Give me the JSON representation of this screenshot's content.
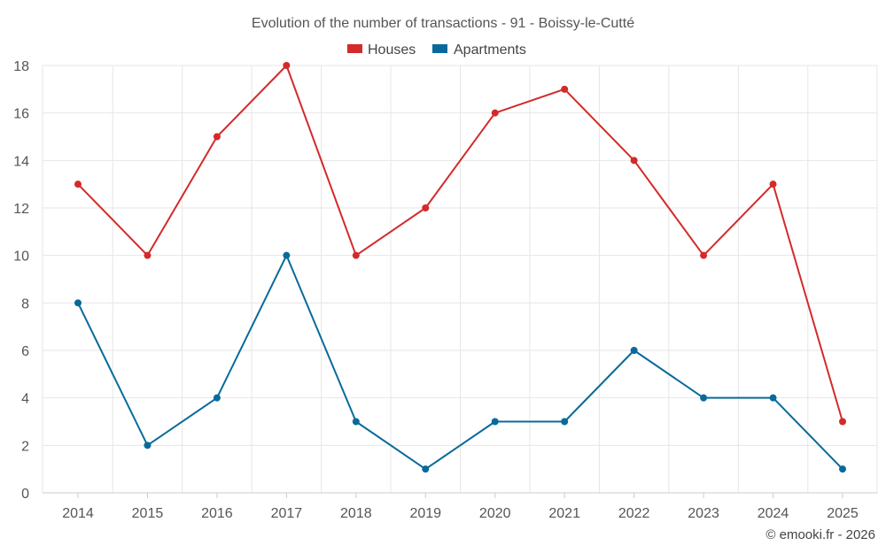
{
  "chart_data": {
    "type": "line",
    "title": "Evolution of the number of transactions - 91 - Boissy-le-Cutté",
    "categories": [
      "2014",
      "2015",
      "2016",
      "2017",
      "2018",
      "2019",
      "2020",
      "2021",
      "2022",
      "2023",
      "2024",
      "2025"
    ],
    "series": [
      {
        "name": "Houses",
        "color": "#d42a2a",
        "values": [
          13,
          10,
          15,
          18,
          10,
          12,
          16,
          17,
          14,
          10,
          13,
          3
        ]
      },
      {
        "name": "Apartments",
        "color": "#086a9b",
        "values": [
          8,
          2,
          4,
          10,
          3,
          1,
          3,
          3,
          6,
          4,
          4,
          1
        ]
      }
    ],
    "ylim": [
      0,
      18
    ],
    "yticks": [
      0,
      2,
      4,
      6,
      8,
      10,
      12,
      14,
      16,
      18
    ],
    "xlabel": "",
    "ylabel": "",
    "legend": "top-center",
    "grid": true
  },
  "credit": "© emooki.fr - 2026"
}
